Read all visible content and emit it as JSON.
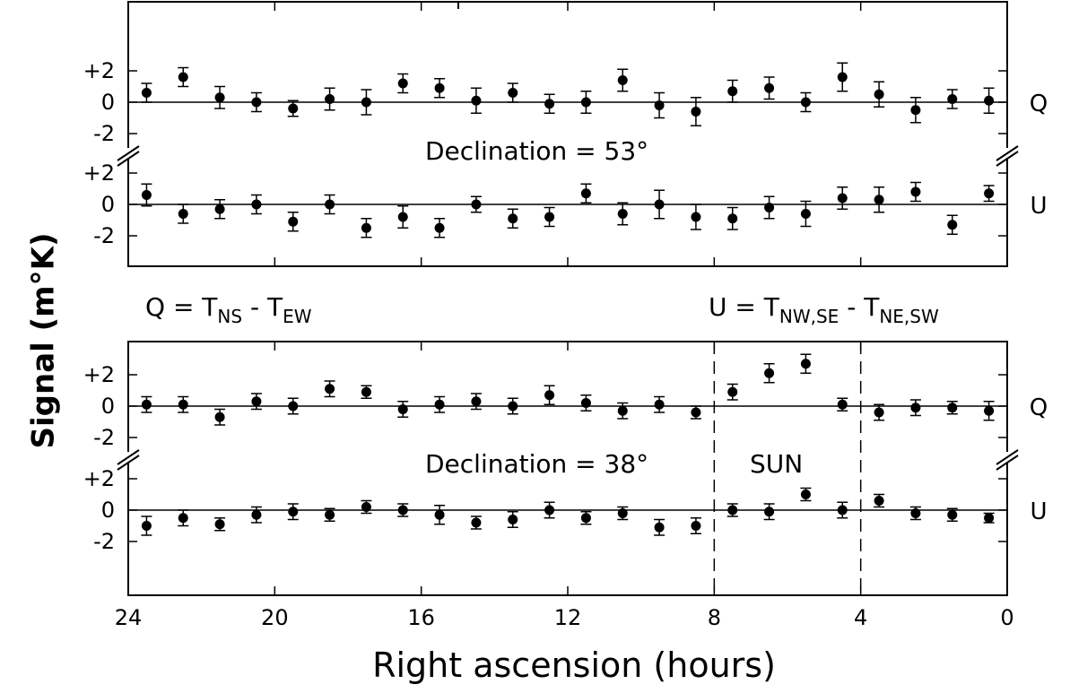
{
  "figure": {
    "xlabel": "Right ascension (hours)",
    "ylabel": "Signal (m°K)",
    "x_tick_labels": [
      "24",
      "20",
      "16",
      "12",
      "8",
      "4",
      "0"
    ],
    "y_tick_labels": [
      "+2",
      "0",
      "-2"
    ],
    "panels": [
      {
        "declination_label": "Declination  = 53°",
        "rows": [
          "Q",
          "U"
        ]
      },
      {
        "declination_label": "Declination = 38°",
        "annotation": "SUN",
        "rows": [
          "Q",
          "U"
        ]
      }
    ],
    "definitions": {
      "q": {
        "lhs": "Q  =  T",
        "sub1": "NS",
        "mid": " - T",
        "sub2": "EW"
      },
      "u": {
        "lhs": "U = T",
        "sub1": "NW,SE",
        "mid": " - T",
        "sub2": "NE,SW"
      }
    }
  },
  "chart_data": {
    "type": "scatter",
    "xlabel": "Right ascension (hours)",
    "ylabel": "Signal (m°K)",
    "x_direction": "decreasing",
    "xlim": [
      24,
      0
    ],
    "ylim_per_row": [
      -3.5,
      3.5
    ],
    "error_bars": true,
    "grid": false,
    "x": [
      23.5,
      22.5,
      21.5,
      20.5,
      19.5,
      18.5,
      17.5,
      16.5,
      15.5,
      14.5,
      13.5,
      12.5,
      11.5,
      10.5,
      9.5,
      8.5,
      7.5,
      6.5,
      5.5,
      4.5,
      3.5,
      2.5,
      1.5,
      0.5
    ],
    "panels": [
      {
        "declination": "Declination  = 53°",
        "series": [
          {
            "name": "Q",
            "values": [
              0.6,
              1.6,
              0.3,
              0,
              -0.4,
              0.2,
              0,
              1.2,
              0.9,
              0.1,
              0.6,
              -0.1,
              0,
              1.4,
              -0.2,
              -0.6,
              0.7,
              0.9,
              0,
              1.6,
              0.5,
              -0.5,
              0.2,
              0.1
            ],
            "errors": [
              0.6,
              0.6,
              0.7,
              0.6,
              0.5,
              0.7,
              0.8,
              0.6,
              0.6,
              0.8,
              0.6,
              0.6,
              0.7,
              0.7,
              0.8,
              0.9,
              0.7,
              0.7,
              0.6,
              0.9,
              0.8,
              0.8,
              0.6,
              0.8
            ]
          },
          {
            "name": "U",
            "values": [
              0.6,
              -0.6,
              -0.3,
              0,
              -1.1,
              0,
              -1.5,
              -0.8,
              -1.5,
              0,
              -0.9,
              -0.8,
              0.7,
              -0.6,
              0,
              -0.8,
              -0.9,
              -0.2,
              -0.6,
              0.4,
              0.3,
              0.8,
              -1.3,
              0.7
            ],
            "errors": [
              0.7,
              0.6,
              0.6,
              0.6,
              0.6,
              0.6,
              0.6,
              0.7,
              0.6,
              0.5,
              0.6,
              0.6,
              0.6,
              0.7,
              0.9,
              0.8,
              0.7,
              0.7,
              0.8,
              0.7,
              0.8,
              0.6,
              0.6,
              0.5
            ]
          }
        ]
      },
      {
        "declination": "Declination = 38°",
        "annotation": "SUN",
        "sun_interval_hours": [
          8,
          4
        ],
        "series": [
          {
            "name": "Q",
            "values": [
              0.1,
              0.1,
              -0.7,
              0.3,
              0,
              1.1,
              0.9,
              -0.2,
              0.1,
              0.3,
              0,
              0.7,
              0.2,
              -0.3,
              0.1,
              -0.4,
              0.9,
              2.1,
              2.7,
              0.1,
              -0.4,
              -0.1,
              -0.1,
              -0.3
            ],
            "errors": [
              0.5,
              0.5,
              0.5,
              0.5,
              0.5,
              0.5,
              0.4,
              0.5,
              0.5,
              0.5,
              0.5,
              0.6,
              0.5,
              0.5,
              0.5,
              0.4,
              0.5,
              0.6,
              0.6,
              0.4,
              0.5,
              0.5,
              0.4,
              0.6
            ]
          },
          {
            "name": "U",
            "values": [
              -1,
              -0.5,
              -0.9,
              -0.3,
              -0.1,
              -0.3,
              0.2,
              0,
              -0.3,
              -0.8,
              -0.6,
              0,
              -0.5,
              -0.2,
              -1.1,
              -1,
              0,
              -0.1,
              1,
              0,
              0.6,
              -0.2,
              -0.3,
              -0.5
            ],
            "errors": [
              0.6,
              0.5,
              0.4,
              0.5,
              0.5,
              0.4,
              0.4,
              0.4,
              0.6,
              0.4,
              0.5,
              0.5,
              0.4,
              0.4,
              0.5,
              0.5,
              0.4,
              0.5,
              0.4,
              0.5,
              0.4,
              0.4,
              0.4,
              0.3
            ]
          }
        ]
      }
    ]
  }
}
